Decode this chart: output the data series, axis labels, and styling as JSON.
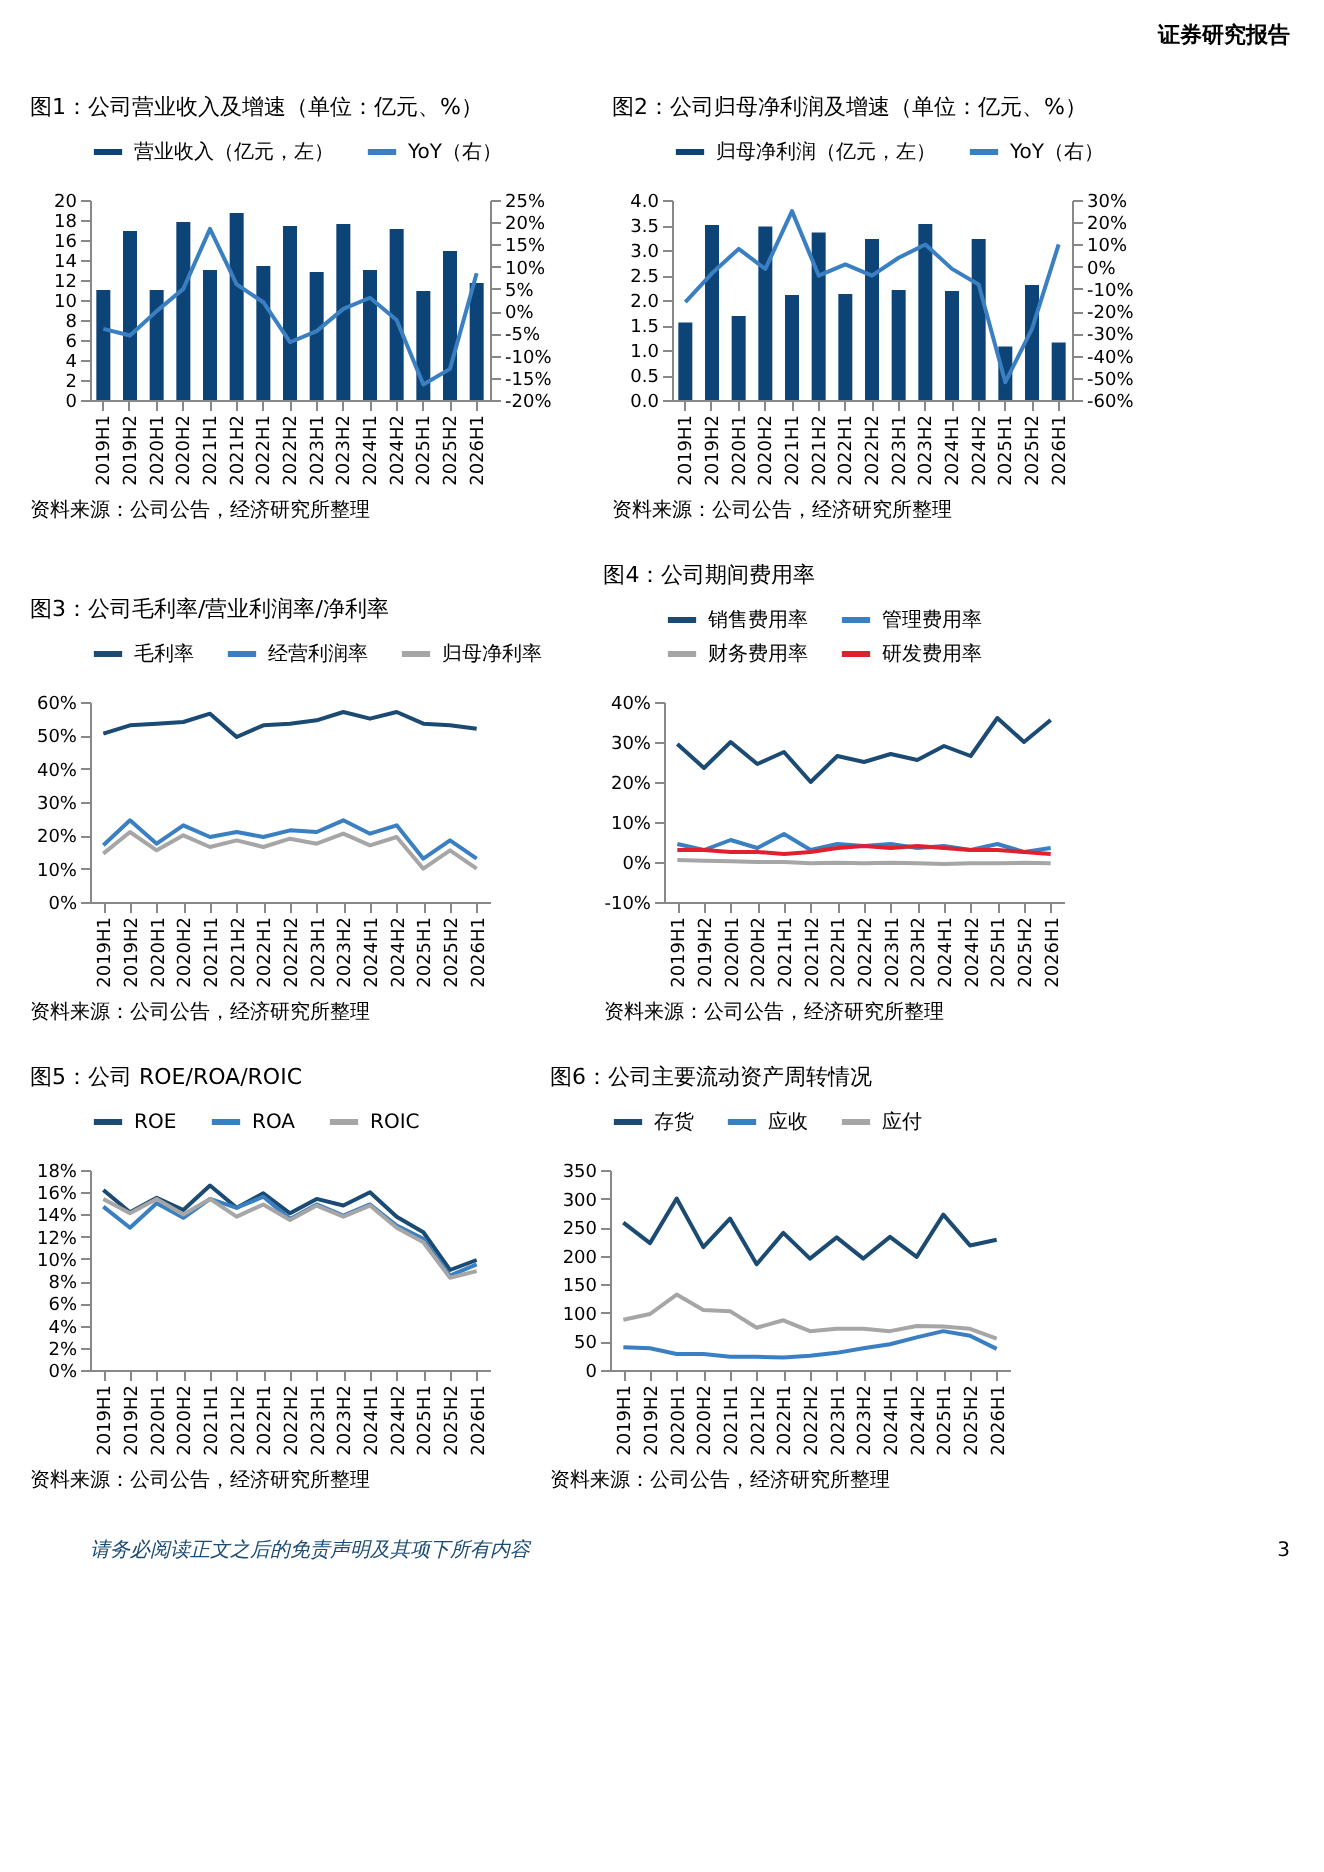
{
  "chart_data": [
    {
      "type": "bar",
      "title": "图1：公司营业收入及增速（单位：亿元、%）",
      "annotations": [
        "资料来源：公司公告，经济研究所整理",
        "证券研究报告"
      ],
      "legend": "top",
      "categories": [
        "2019H1",
        "2019H2",
        "2020H1",
        "2020H2",
        "2021H1",
        "2021H2",
        "2022H1",
        "2022H2",
        "2023H1",
        "2023H2",
        "2024H1",
        "2024H2",
        "2025H1",
        "2025H2",
        "2026H1"
      ],
      "ylim": [
        0,
        20
      ],
      "yticks": [
        0,
        2,
        4,
        6,
        8,
        10,
        12,
        14,
        16,
        18,
        20
      ],
      "y2lim": [
        -20,
        25
      ],
      "y2ticks": [
        {
          "value": -20,
          "label": "-20%"
        },
        {
          "value": -15,
          "label": "-15%"
        },
        {
          "value": -10,
          "label": "-10%"
        },
        {
          "value": -5,
          "label": "-5%"
        },
        {
          "value": 0,
          "label": "0%"
        },
        {
          "value": 5,
          "label": "5%"
        },
        {
          "value": 10,
          "label": "10%"
        },
        {
          "value": 15,
          "label": "15%"
        },
        {
          "value": 20,
          "label": "20%"
        },
        {
          "value": 25,
          "label": "25%"
        }
      ],
      "series": [
        {
          "name": "营业收入（亿元，左）",
          "type": "bar",
          "color": "#0d4477",
          "values": [
            11,
            16.9,
            11,
            17.8,
            13,
            18.7,
            13.4,
            17.4,
            12.8,
            17.6,
            13,
            17.1,
            10.9,
            14.9,
            11.7
          ]
        },
        {
          "name": "YoY（右）",
          "type": "line",
          "axis": "y2",
          "color": "#3a7fc1",
          "values": [
            -4,
            -5.5,
            0,
            5,
            18.5,
            6,
            2,
            -7,
            -4.5,
            0.5,
            3,
            -2,
            -16.5,
            -13,
            8.5
          ]
        }
      ]
    },
    {
      "type": "bar",
      "title": "图2：公司归母净利润及增速（单位：亿元、%）",
      "annotations": [
        "资料来源：公司公告，经济研究所整理"
      ],
      "legend": "top",
      "categories": [
        "2019H1",
        "2019H2",
        "2020H1",
        "2020H2",
        "2021H1",
        "2021H2",
        "2022H1",
        "2022H2",
        "2023H1",
        "2023H2",
        "2024H1",
        "2024H2",
        "2025H1",
        "2025H2",
        "2026H1"
      ],
      "ylim": [
        0,
        4
      ],
      "yticks": [
        {
          "value": 0,
          "label": "0.0"
        },
        {
          "value": 0.5,
          "label": "0.5"
        },
        {
          "value": 1,
          "label": "1.0"
        },
        {
          "value": 1.5,
          "label": "1.5"
        },
        {
          "value": 2,
          "label": "2.0"
        },
        {
          "value": 2.5,
          "label": "2.5"
        },
        {
          "value": 3,
          "label": "3.0"
        },
        {
          "value": 3.5,
          "label": "3.5"
        },
        {
          "value": 4,
          "label": "4.0"
        }
      ],
      "y2lim": [
        -60,
        30
      ],
      "y2ticks": [
        {
          "value": -60,
          "label": "-60%"
        },
        {
          "value": -50,
          "label": "-50%"
        },
        {
          "value": -40,
          "label": "-40%"
        },
        {
          "value": -30,
          "label": "-30%"
        },
        {
          "value": -20,
          "label": "-20%"
        },
        {
          "value": -10,
          "label": "-10%"
        },
        {
          "value": 0,
          "label": "0%"
        },
        {
          "value": 10,
          "label": "10%"
        },
        {
          "value": 20,
          "label": "20%"
        },
        {
          "value": 30,
          "label": "30%"
        }
      ],
      "series": [
        {
          "name": "归母净利润（亿元，左）",
          "type": "bar",
          "color": "#0d4477",
          "values": [
            1.55,
            3.5,
            1.68,
            3.47,
            2.1,
            3.35,
            2.12,
            3.22,
            2.2,
            3.52,
            2.18,
            3.22,
            1.07,
            2.3,
            1.15
          ]
        },
        {
          "name": "YoY（右）",
          "type": "line",
          "axis": "y2",
          "color": "#3a7fc1",
          "values": [
            -16,
            -3,
            8,
            -1,
            25,
            -4,
            1,
            -4,
            4,
            10,
            -1,
            -8,
            -52,
            -28,
            10
          ]
        }
      ]
    },
    {
      "type": "line",
      "title": "图3：公司毛利率/营业利润率/净利率",
      "annotations": [
        "资料来源：公司公告，经济研究所整理"
      ],
      "legend": "top",
      "categories": [
        "2019H1",
        "2019H2",
        "2020H1",
        "2020H2",
        "2021H1",
        "2021H2",
        "2022H1",
        "2022H2",
        "2023H1",
        "2023H2",
        "2024H1",
        "2024H2",
        "2025H1",
        "2025H2",
        "2026H1"
      ],
      "ylim": [
        0,
        60
      ],
      "yticks": [
        {
          "value": 0,
          "label": "0%"
        },
        {
          "value": 10,
          "label": "10%"
        },
        {
          "value": 20,
          "label": "20%"
        },
        {
          "value": 30,
          "label": "30%"
        },
        {
          "value": 40,
          "label": "40%"
        },
        {
          "value": 50,
          "label": "50%"
        },
        {
          "value": 60,
          "label": "60%"
        }
      ],
      "series": [
        {
          "name": "毛利率",
          "color": "#1b4a72",
          "values": [
            50.5,
            53,
            53.5,
            54,
            56.5,
            49.5,
            53,
            53.5,
            54.5,
            57,
            55,
            57,
            53.5,
            53,
            52
          ]
        },
        {
          "name": "经营利润率",
          "color": "#3a7fc1",
          "values": [
            17,
            24.5,
            17.5,
            23,
            19.5,
            21,
            19.5,
            21.5,
            21,
            24.5,
            20.5,
            23,
            13,
            18.5,
            13
          ]
        },
        {
          "name": "归母净利率",
          "color": "#a6a6a6",
          "values": [
            14.5,
            21,
            15.5,
            20,
            16.5,
            18.5,
            16.5,
            19,
            17.5,
            20.5,
            17,
            19.5,
            10,
            15.5,
            10
          ]
        }
      ]
    },
    {
      "type": "line",
      "title": "图4：公司期间费用率",
      "annotations": [
        "资料来源：公司公告，经济研究所整理"
      ],
      "legend": "top",
      "categories": [
        "2019H1",
        "2019H2",
        "2020H1",
        "2020H2",
        "2021H1",
        "2021H2",
        "2022H1",
        "2022H2",
        "2023H1",
        "2023H2",
        "2024H1",
        "2024H2",
        "2025H1",
        "2025H2",
        "2026H1"
      ],
      "ylim": [
        -10,
        40
      ],
      "yticks": [
        {
          "value": -10,
          "label": "-10%"
        },
        {
          "value": 0,
          "label": "0%"
        },
        {
          "value": 10,
          "label": "10%"
        },
        {
          "value": 20,
          "label": "20%"
        },
        {
          "value": 30,
          "label": "30%"
        },
        {
          "value": 40,
          "label": "40%"
        }
      ],
      "series": [
        {
          "name": "销售费用率",
          "color": "#1b4a72",
          "values": [
            29.5,
            23.5,
            30,
            24.5,
            27.5,
            20,
            26.5,
            25,
            27,
            25.5,
            29,
            26.5,
            36,
            30,
            35.5
          ]
        },
        {
          "name": "管理费用率",
          "color": "#3a7fc1",
          "values": [
            4.5,
            3,
            5.5,
            3.5,
            7,
            3,
            4.5,
            4,
            4.5,
            3.5,
            4,
            3,
            4.5,
            2.5,
            3.5
          ]
        },
        {
          "name": "财务费用率",
          "color": "#a6a6a6",
          "values": [
            0.5,
            0.3,
            0.2,
            0,
            0,
            -0.3,
            -0.2,
            -0.3,
            -0.2,
            -0.3,
            -0.5,
            -0.3,
            -0.3,
            -0.2,
            -0.3
          ]
        },
        {
          "name": "研发费用率",
          "color": "#e0202e",
          "values": [
            3,
            3,
            2.5,
            2.5,
            2,
            2.5,
            3.5,
            4,
            3.5,
            4,
            3.5,
            3,
            3,
            2.5,
            2
          ]
        }
      ]
    },
    {
      "type": "line",
      "title": "图5：公司 ROE/ROA/ROIC",
      "annotations": [
        "资料来源：公司公告，经济研究所整理"
      ],
      "legend": "top",
      "categories": [
        "2019H1",
        "2019H2",
        "2020H1",
        "2020H2",
        "2021H1",
        "2021H2",
        "2022H1",
        "2022H2",
        "2023H1",
        "2023H2",
        "2024H1",
        "2024H2",
        "2025H1",
        "2025H2",
        "2026H1"
      ],
      "ylim": [
        0,
        18
      ],
      "yticks": [
        {
          "value": 0,
          "label": "0%"
        },
        {
          "value": 2,
          "label": "2%"
        },
        {
          "value": 4,
          "label": "4%"
        },
        {
          "value": 6,
          "label": "6%"
        },
        {
          "value": 8,
          "label": "8%"
        },
        {
          "value": 10,
          "label": "10%"
        },
        {
          "value": 12,
          "label": "12%"
        },
        {
          "value": 14,
          "label": "14%"
        },
        {
          "value": 16,
          "label": "16%"
        },
        {
          "value": 18,
          "label": "18%"
        }
      ],
      "series": [
        {
          "name": "ROE",
          "color": "#1b4a72",
          "values": [
            16.2,
            14.2,
            15.5,
            14.4,
            16.6,
            14.6,
            15.9,
            14.1,
            15.4,
            14.8,
            16,
            13.8,
            12.4,
            9,
            9.9
          ]
        },
        {
          "name": "ROA",
          "color": "#3a7fc1",
          "values": [
            14.7,
            12.8,
            15,
            13.7,
            15.4,
            14.6,
            15.6,
            13.6,
            14.9,
            13.9,
            14.9,
            13,
            11.8,
            8.5,
            9.5
          ]
        },
        {
          "name": "ROIC",
          "color": "#a6a6a6",
          "values": [
            15.4,
            14.1,
            15.4,
            14,
            15.4,
            13.8,
            14.9,
            13.5,
            14.8,
            13.8,
            14.8,
            12.8,
            11.5,
            8.3,
            8.9
          ]
        }
      ]
    },
    {
      "type": "line",
      "title": "图6：公司主要流动资产周转情况",
      "annotations": [
        "资料来源：公司公告，经济研究所整理",
        "请务必阅读正文之后的免责声明及其项下所有内容",
        "3"
      ],
      "legend": "top",
      "categories": [
        "2019H1",
        "2019H2",
        "2020H1",
        "2020H2",
        "2021H1",
        "2021H2",
        "2022H1",
        "2022H2",
        "2023H1",
        "2023H2",
        "2024H1",
        "2024H2",
        "2025H1",
        "2025H2",
        "2026H1"
      ],
      "ylim": [
        0,
        350
      ],
      "yticks": [
        0,
        50,
        100,
        150,
        200,
        250,
        300,
        350
      ],
      "series": [
        {
          "name": "存货",
          "color": "#1b4a72",
          "values": [
            258,
            222,
            300,
            215,
            265,
            185,
            240,
            195,
            232,
            195,
            233,
            198,
            272,
            218,
            228
          ]
        },
        {
          "name": "应收",
          "color": "#3a7fc1",
          "values": [
            40,
            38,
            28,
            28,
            23,
            23,
            22,
            25,
            30,
            38,
            45,
            57,
            68,
            60,
            37
          ]
        },
        {
          "name": "应付",
          "color": "#a6a6a6",
          "values": [
            88,
            98,
            132,
            105,
            103,
            74,
            87,
            68,
            72,
            72,
            68,
            77,
            76,
            72,
            55
          ]
        }
      ]
    }
  ]
}
